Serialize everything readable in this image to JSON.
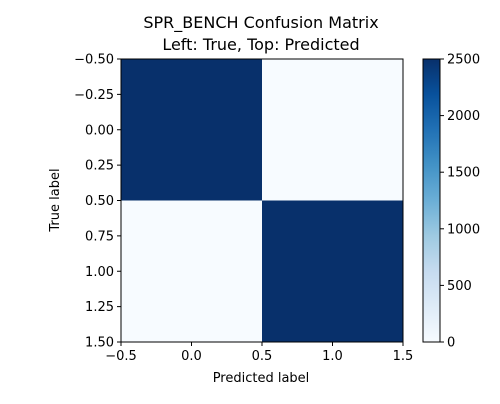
{
  "chart_data": {
    "type": "heatmap",
    "title": "SPR_BENCH Confusion Matrix",
    "subtitle": "Left: True, Top: Predicted",
    "xlabel": "Predicted label",
    "ylabel": "True label",
    "xlim": [
      -0.5,
      1.5
    ],
    "ylim": [
      1.5,
      -0.5
    ],
    "x_ticks": [
      -0.5,
      0.0,
      0.5,
      1.0,
      1.5
    ],
    "x_tick_labels": [
      "−0.5",
      "0.0",
      "0.5",
      "1.0",
      "1.5"
    ],
    "y_ticks": [
      -0.5,
      -0.25,
      0.0,
      0.25,
      0.5,
      0.75,
      1.0,
      1.25,
      1.5
    ],
    "y_tick_labels": [
      "−0.50",
      "−0.25",
      "0.00",
      "0.25",
      "0.50",
      "0.75",
      "1.00",
      "1.25",
      "1.50"
    ],
    "rows": [
      0,
      1
    ],
    "cols": [
      0,
      1
    ],
    "matrix": [
      [
        2500,
        0
      ],
      [
        0,
        2500
      ]
    ],
    "colormap": "Blues",
    "colorbar": {
      "min": 0,
      "max": 2500,
      "ticks": [
        0,
        500,
        1000,
        1500,
        2000,
        2500
      ],
      "tick_labels": [
        "0",
        "500",
        "1000",
        "1500",
        "2000",
        "2500"
      ]
    },
    "grid": false
  }
}
